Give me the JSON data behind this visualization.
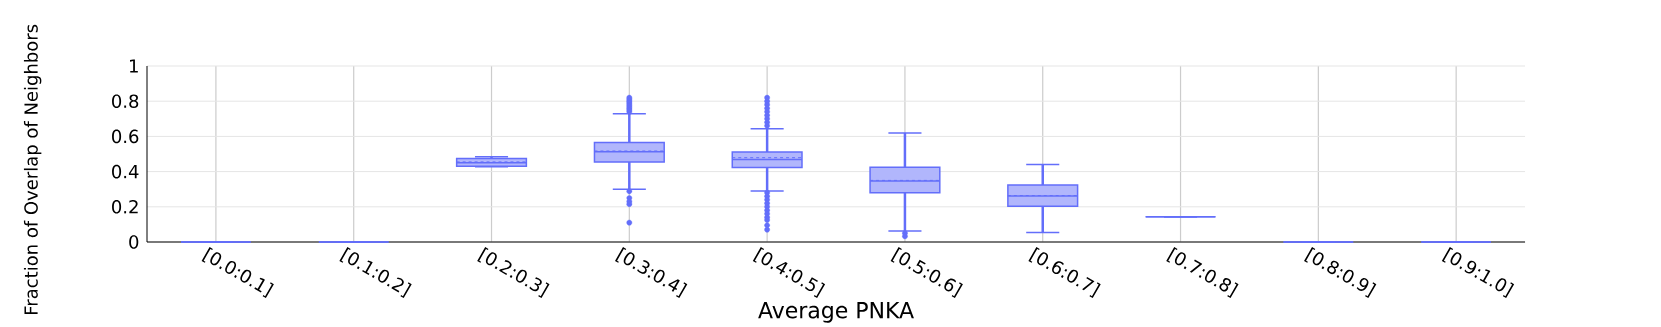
{
  "chart_data": {
    "type": "box",
    "xlabel": "Average PNKA",
    "ylabel": "Fraction of Overlap of Neighbors",
    "categories": [
      "[0.0:0.1]",
      "[0.1:0.2]",
      "[0.2:0.3]",
      "[0.3:0.4]",
      "[0.4:0.5]",
      "[0.5:0.6]",
      "[0.6:0.7]",
      "[0.7:0.8]",
      "[0.8:0.9]",
      "[0.9:1.0]"
    ],
    "color": "#636efa",
    "boxes": [
      {
        "low": 0,
        "q1": 0,
        "median": 0,
        "q3": 0,
        "high": 0
      },
      {
        "low": 0,
        "q1": 0,
        "median": 0,
        "q3": 0,
        "high": 0
      },
      {
        "low": 0.427,
        "q1": 0.43,
        "median": 0.45,
        "q3": 0.475,
        "high": 0.485,
        "mean": 0.455
      },
      {
        "low": 0.3,
        "q1": 0.455,
        "median": 0.513,
        "q3": 0.565,
        "high": 0.728,
        "mean": 0.517,
        "outliers": [
          0.74,
          0.75,
          0.76,
          0.77,
          0.78,
          0.79,
          0.8,
          0.81,
          0.82,
          0.288,
          0.25,
          0.23,
          0.215,
          0.11
        ]
      },
      {
        "low": 0.29,
        "q1": 0.423,
        "median": 0.469,
        "q3": 0.511,
        "high": 0.644,
        "mean": 0.479,
        "outliers": [
          0.66,
          0.68,
          0.7,
          0.72,
          0.74,
          0.76,
          0.78,
          0.8,
          0.82,
          0.28,
          0.26,
          0.24,
          0.22,
          0.2,
          0.18,
          0.16,
          0.14,
          0.125,
          0.095,
          0.07
        ]
      },
      {
        "low": 0.062,
        "q1": 0.28,
        "median": 0.346,
        "q3": 0.425,
        "high": 0.62,
        "mean": 0.35,
        "outliers": [
          0.05,
          0.032
        ]
      },
      {
        "low": 0.054,
        "q1": 0.203,
        "median": 0.262,
        "q3": 0.324,
        "high": 0.44,
        "mean": 0.264
      },
      {
        "low": 0.143,
        "q1": 0.143,
        "median": 0.143,
        "q3": 0.143,
        "high": 0.143
      },
      {
        "low": 0,
        "q1": 0,
        "median": 0,
        "q3": 0,
        "high": 0
      },
      {
        "low": 0,
        "q1": 0,
        "median": 0,
        "q3": 0,
        "high": 0
      }
    ],
    "ylim": [
      0,
      1
    ],
    "yticks": [
      0,
      0.2,
      0.4,
      0.6,
      0.8,
      1
    ],
    "grid": true
  }
}
